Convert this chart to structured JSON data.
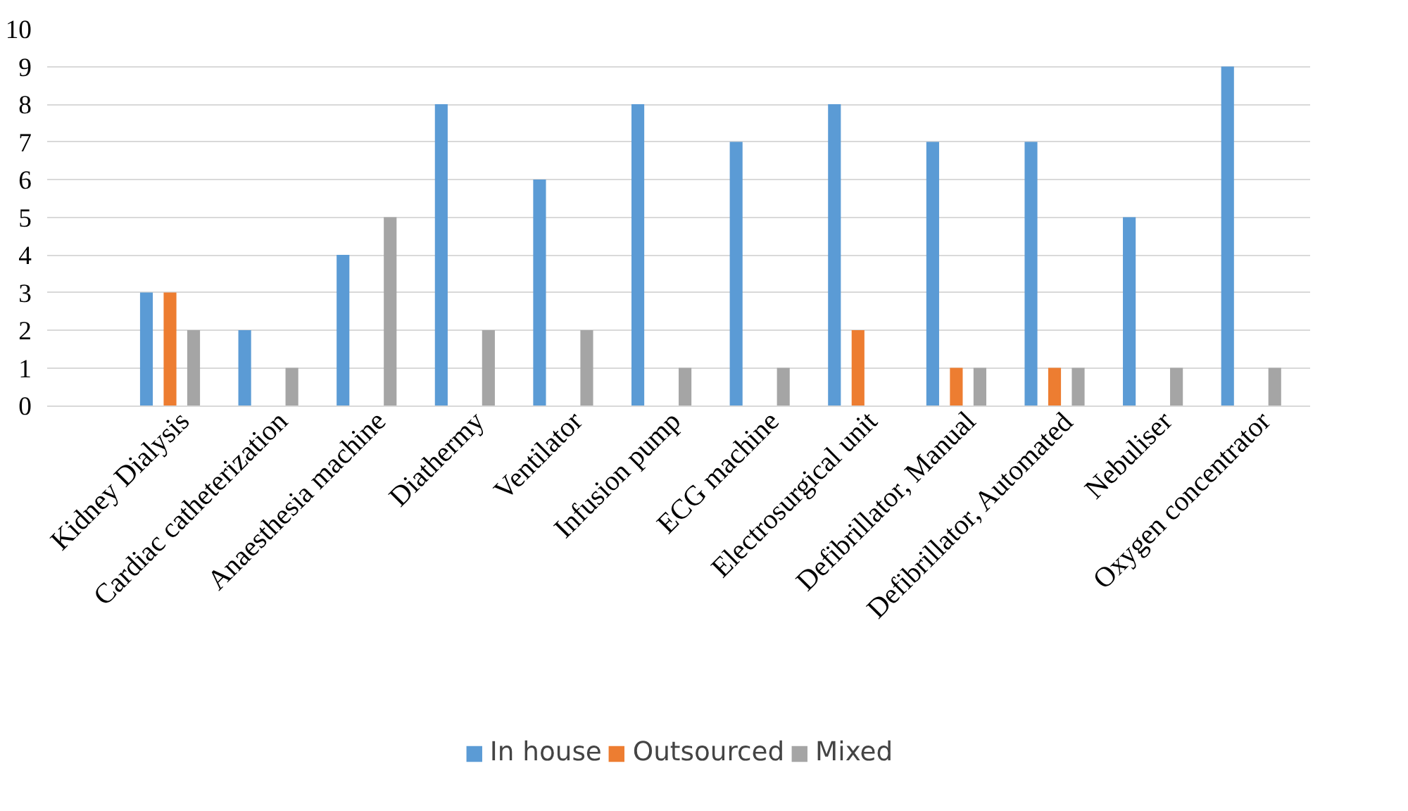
{
  "chart_data": {
    "type": "bar",
    "categories": [
      "Kidney Dialysis",
      "Cardiac catheterization",
      "Anaesthesia machine",
      "Diathermy",
      "Ventilator",
      "Infusion pump",
      "ECG machine",
      "Electrosurgical unit",
      "Defibrillator, Manual",
      "Defibrillator, Automated",
      "Nebuliser",
      "Oxygen concentrator"
    ],
    "series": [
      {
        "name": "In house",
        "color": "#5b9bd5",
        "values": [
          3,
          2,
          4,
          8,
          6,
          8,
          7,
          8,
          7,
          7,
          5,
          9
        ]
      },
      {
        "name": "Outsourced",
        "color": "#ed7d31",
        "values": [
          3,
          0,
          0,
          0,
          0,
          0,
          0,
          2,
          1,
          1,
          0,
          0
        ]
      },
      {
        "name": "Mixed",
        "color": "#a5a5a5",
        "values": [
          2,
          1,
          5,
          2,
          2,
          1,
          1,
          0,
          1,
          1,
          1,
          1
        ]
      }
    ],
    "ylim": [
      0,
      10
    ],
    "yticks": [
      0,
      1,
      2,
      3,
      4,
      5,
      6,
      7,
      8,
      9,
      10
    ],
    "grid": "y",
    "legend": "bottom"
  }
}
